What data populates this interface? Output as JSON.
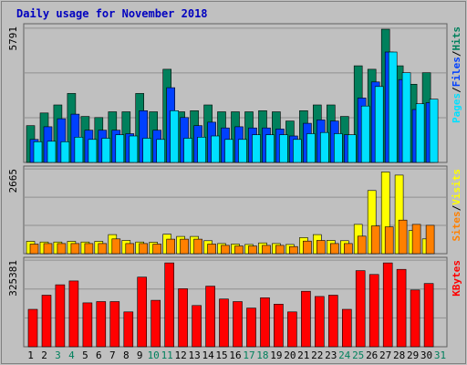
{
  "title": "Daily usage for November 2018",
  "colors": {
    "hits": "#00805C",
    "files": "#0040FF",
    "pages": "#00E0FF",
    "visits": "#FFFF00",
    "sites": "#FF8000",
    "kbytes": "#FF0000",
    "weekend_day": "#00805C",
    "weekday": "#000000",
    "panel_bg": "#C0C0C0",
    "frame": "#A0A0A0",
    "title": "#0000C0"
  },
  "chart_data": [
    {
      "type": "bar",
      "panel": "hits-files-pages",
      "max_label": "5791",
      "ylim": [
        0,
        5791
      ],
      "grid": true,
      "legend": [
        {
          "text": "Pages",
          "color_key": "pages"
        },
        {
          "text": "/",
          "color_key": "weekday"
        },
        {
          "text": "Files",
          "color_key": "files"
        },
        {
          "text": "/",
          "color_key": "weekday"
        },
        {
          "text": "Hits",
          "color_key": "hits"
        }
      ],
      "categories": [
        "1",
        "2",
        "3",
        "4",
        "5",
        "6",
        "7",
        "8",
        "9",
        "10",
        "11",
        "12",
        "13",
        "14",
        "15",
        "16",
        "17",
        "18",
        "19",
        "20",
        "21",
        "22",
        "23",
        "24",
        "25",
        "26",
        "27",
        "28",
        "29",
        "30",
        "31"
      ],
      "series": [
        {
          "name": "Hits",
          "color_key": "hits",
          "values": [
            1600,
            2150,
            2500,
            3000,
            2000,
            1950,
            2200,
            2200,
            3000,
            2200,
            4050,
            2200,
            2250,
            2500,
            2200,
            2200,
            2200,
            2250,
            2200,
            1800,
            2250,
            2500,
            2500,
            2000,
            4200,
            4050,
            5790,
            4200,
            3400,
            3900,
            null
          ]
        },
        {
          "name": "Files",
          "color_key": "files",
          "values": [
            1000,
            1550,
            1900,
            2100,
            1400,
            1400,
            1400,
            1250,
            2250,
            1400,
            3250,
            1950,
            1600,
            1750,
            1500,
            1550,
            1500,
            1500,
            1450,
            1150,
            1700,
            1850,
            1800,
            1200,
            2800,
            3500,
            4800,
            3600,
            2300,
            2600,
            null
          ]
        },
        {
          "name": "Pages",
          "color_key": "pages",
          "values": [
            900,
            920,
            900,
            1100,
            1000,
            1050,
            1200,
            1150,
            1050,
            1000,
            2250,
            1050,
            1100,
            1150,
            1000,
            1000,
            1200,
            1200,
            1200,
            1000,
            1250,
            1300,
            1250,
            1200,
            2450,
            3300,
            4800,
            3900,
            2550,
            2750,
            null
          ]
        }
      ]
    },
    {
      "type": "bar",
      "panel": "visits-sites",
      "max_label": "2665",
      "ylim": [
        0,
        2665
      ],
      "grid": true,
      "legend": [
        {
          "text": "Sites",
          "color_key": "sites"
        },
        {
          "text": "/",
          "color_key": "weekday"
        },
        {
          "text": "Visits",
          "color_key": "visits"
        }
      ],
      "series": [
        {
          "name": "Visits",
          "color_key": "visits",
          "values": [
            400,
            380,
            380,
            400,
            380,
            400,
            620,
            430,
            380,
            370,
            630,
            560,
            560,
            420,
            330,
            310,
            300,
            350,
            330,
            300,
            520,
            620,
            430,
            420,
            950,
            2050,
            2650,
            2550,
            750,
            480,
            null
          ]
        },
        {
          "name": "Sites",
          "color_key": "sites",
          "values": [
            310,
            330,
            330,
            330,
            330,
            330,
            480,
            330,
            330,
            310,
            470,
            470,
            470,
            310,
            270,
            250,
            250,
            270,
            270,
            230,
            410,
            430,
            330,
            330,
            570,
            900,
            870,
            1090,
            950,
            920,
            null
          ]
        }
      ]
    },
    {
      "type": "bar",
      "panel": "kbytes",
      "max_label": "325381",
      "ylim": [
        0,
        325381
      ],
      "grid": true,
      "legend": [
        {
          "text": "KBytes",
          "color_key": "kbytes"
        }
      ],
      "series": [
        {
          "name": "KBytes",
          "color_key": "kbytes",
          "values": [
            145000,
            200000,
            240000,
            255000,
            170000,
            175000,
            175000,
            135000,
            270000,
            180000,
            325000,
            225000,
            160000,
            235000,
            185000,
            175000,
            150000,
            190000,
            165000,
            135000,
            215000,
            195000,
            200000,
            145000,
            295000,
            280000,
            325000,
            300000,
            220000,
            245000,
            null
          ]
        }
      ]
    }
  ]
}
